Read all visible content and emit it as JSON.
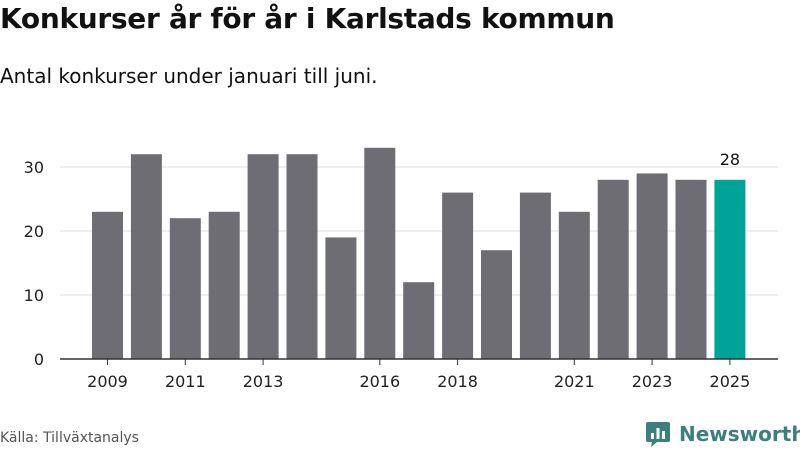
{
  "header": {
    "title": "Konkurser år för år i Karlstads kommun",
    "subtitle": "Antal konkurser under januari till juni."
  },
  "footer": {
    "source": "Källa: Tillväxtanalys",
    "brand": "Newsworthy",
    "brand_icon": "newsworthy-logo-icon"
  },
  "colors": {
    "bar": "#6e6d73",
    "highlight": "#00a398",
    "grid": "#dddddd",
    "axis": "#333333"
  },
  "chart_data": {
    "type": "bar",
    "title": "Konkurser år för år i Karlstads kommun",
    "subtitle": "Antal konkurser under januari till juni.",
    "categories": [
      2009,
      2010,
      2011,
      2012,
      2013,
      2014,
      2015,
      2016,
      2017,
      2018,
      2019,
      2020,
      2021,
      2022,
      2023,
      2024,
      2025
    ],
    "values": [
      23,
      32,
      22,
      23,
      32,
      32,
      19,
      33,
      12,
      26,
      17,
      26,
      23,
      28,
      29,
      28,
      28
    ],
    "highlight_category": 2025,
    "highlight_label": "28",
    "x_tick_labels": [
      "2009",
      "2011",
      "2013",
      "2016",
      "2018",
      "2021",
      "2023",
      "2025"
    ],
    "y_ticks": [
      0,
      10,
      20,
      30
    ],
    "ylim": [
      0,
      33
    ],
    "xlabel": "",
    "ylabel": "",
    "grid": true
  }
}
